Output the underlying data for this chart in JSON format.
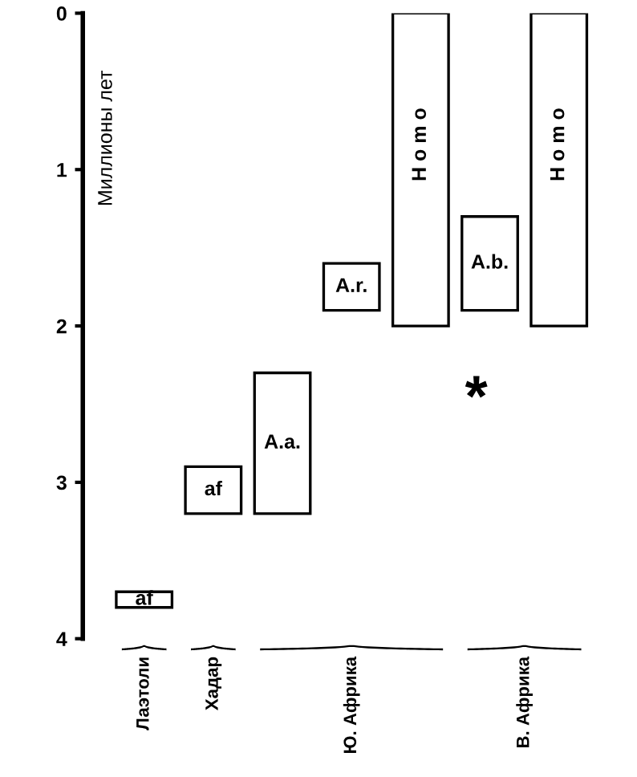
{
  "chart_data": {
    "type": "bar",
    "ylabel": "Миллионы лет",
    "categories": [
      "Лаэтоли",
      "Хадар",
      "Ю. Африка",
      "В. Африка"
    ],
    "series": [
      {
        "name": "af",
        "color": "#ffffff",
        "values": [
          0.1,
          null,
          null,
          null
        ],
        "base": [
          3.7,
          null,
          null,
          null
        ]
      },
      {
        "name": "af",
        "color": "#ffffff",
        "values": [
          null,
          0.3,
          null,
          null
        ],
        "base": [
          null,
          2.9,
          null,
          null
        ]
      },
      {
        "name": "A.a.",
        "color": "#ffffff",
        "values": [
          null,
          null,
          0.9,
          null
        ],
        "base": [
          null,
          null,
          2.3,
          null
        ]
      },
      {
        "name": "A.r.",
        "color": "#ffffff",
        "values": [
          null,
          null,
          0.3,
          null
        ],
        "base": [
          null,
          null,
          1.6,
          null
        ]
      },
      {
        "name": "H o m o",
        "color": "#ffffff",
        "values": [
          null,
          null,
          2.0,
          null
        ],
        "base": [
          null,
          null,
          0,
          null
        ]
      },
      {
        "name": "A.b.",
        "color": "#ffffff",
        "values": [
          null,
          null,
          null,
          0.6
        ],
        "base": [
          null,
          null,
          null,
          1.3
        ]
      },
      {
        "name": "H o m o",
        "color": "#ffffff",
        "values": [
          null,
          null,
          null,
          2.0
        ],
        "base": [
          null,
          null,
          null,
          0
        ]
      }
    ],
    "annotations": [
      "*"
    ],
    "ylim": [
      4,
      0
    ],
    "yticks": [
      0,
      1,
      2,
      3,
      4
    ],
    "grid": false,
    "legend": false
  }
}
